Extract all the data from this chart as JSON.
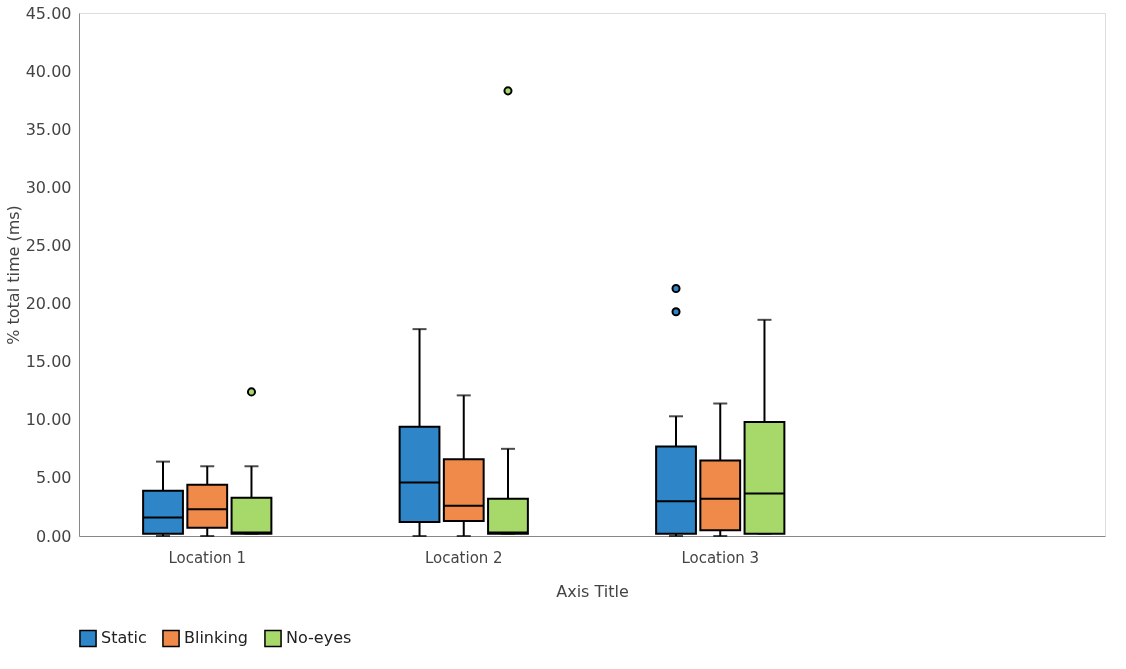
{
  "chart_data": {
    "type": "box",
    "xlabel": "Axis Title",
    "ylabel": "% total time (ms)",
    "categories": [
      "Location 1",
      "Location 2",
      "Location 3",
      null
    ],
    "ylim": [
      0,
      45
    ],
    "yticks": [
      {
        "value": 0,
        "label": "0.00"
      },
      {
        "value": 5,
        "label": "5.00"
      },
      {
        "value": 10,
        "label": "10.00"
      },
      {
        "value": 15,
        "label": "15.00"
      },
      {
        "value": 20,
        "label": "20.00"
      },
      {
        "value": 25,
        "label": "25.00"
      },
      {
        "value": 30,
        "label": "30.00"
      },
      {
        "value": 35,
        "label": "35.00"
      },
      {
        "value": 40,
        "label": "40.00"
      },
      {
        "value": 45,
        "label": "45.00"
      }
    ],
    "grid": false,
    "legend": "bottom",
    "series": [
      {
        "name": "Static",
        "color": "#2e86c8",
        "boxes": [
          {
            "low": 0,
            "q1": 0.2,
            "median": 1.6,
            "q3": 3.9,
            "high": 6.4
          },
          {
            "low": 0,
            "q1": 1.2,
            "median": 4.6,
            "q3": 9.4,
            "high": 17.8
          },
          {
            "low": 0,
            "q1": 0.2,
            "median": 3.0,
            "q3": 7.7,
            "high": 10.3,
            "outliers": [
              19.3,
              21.3
            ]
          },
          null
        ]
      },
      {
        "name": "Blinking",
        "color": "#f08a4b",
        "boxes": [
          {
            "low": 0,
            "q1": 0.7,
            "median": 2.3,
            "q3": 4.4,
            "high": 6.0
          },
          {
            "low": 0,
            "q1": 1.3,
            "median": 2.6,
            "q3": 6.6,
            "high": 12.1
          },
          {
            "low": 0,
            "q1": 0.5,
            "median": 3.2,
            "q3": 6.5,
            "high": 11.4
          },
          null
        ]
      },
      {
        "name": "No-eyes",
        "color": "#a6d96a",
        "boxes": [
          {
            "low": 0.2,
            "q1": 0.2,
            "median": 0.3,
            "q3": 3.3,
            "high": 6.0,
            "outliers": [
              12.4
            ]
          },
          {
            "low": 0.2,
            "q1": 0.2,
            "median": 0.3,
            "q3": 3.2,
            "high": 7.5,
            "outliers": [
              38.3
            ]
          },
          {
            "low": 0.2,
            "q1": 0.2,
            "median": 3.65,
            "q3": 9.8,
            "high": 18.6
          },
          null
        ]
      }
    ]
  }
}
